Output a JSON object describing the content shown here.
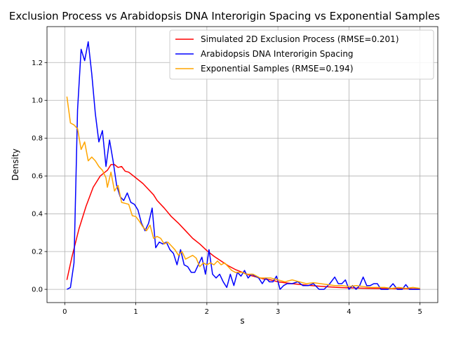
{
  "chart_data": {
    "type": "line",
    "title": "Exclusion Process vs Arabidopsis DNA Interorigin Spacing vs Exponential Samples",
    "xlabel": "s",
    "ylabel": "Density",
    "xlim": [
      -0.25,
      5.25
    ],
    "ylim": [
      -0.07,
      1.39
    ],
    "xticks": [
      0,
      1,
      2,
      3,
      4,
      5
    ],
    "yticks": [
      0.0,
      0.2,
      0.4,
      0.6,
      0.8,
      1.0,
      1.2
    ],
    "grid": true,
    "legend_position": "top-right",
    "series": [
      {
        "name": "Simulated 2D Exclusion Process (RMSE=0.201)",
        "color": "#ff0000",
        "points": [
          [
            0.03,
            0.05
          ],
          [
            0.1,
            0.17
          ],
          [
            0.2,
            0.32
          ],
          [
            0.3,
            0.44
          ],
          [
            0.4,
            0.54
          ],
          [
            0.5,
            0.6
          ],
          [
            0.6,
            0.63
          ],
          [
            0.65,
            0.66
          ],
          [
            0.7,
            0.66
          ],
          [
            0.75,
            0.645
          ],
          [
            0.8,
            0.65
          ],
          [
            0.85,
            0.625
          ],
          [
            0.9,
            0.62
          ],
          [
            1.0,
            0.59
          ],
          [
            1.1,
            0.56
          ],
          [
            1.2,
            0.52
          ],
          [
            1.25,
            0.5
          ],
          [
            1.3,
            0.47
          ],
          [
            1.4,
            0.43
          ],
          [
            1.5,
            0.385
          ],
          [
            1.6,
            0.35
          ],
          [
            1.7,
            0.31
          ],
          [
            1.8,
            0.27
          ],
          [
            1.9,
            0.24
          ],
          [
            2.0,
            0.205
          ],
          [
            2.1,
            0.175
          ],
          [
            2.2,
            0.15
          ],
          [
            2.3,
            0.125
          ],
          [
            2.4,
            0.105
          ],
          [
            2.5,
            0.09
          ],
          [
            2.6,
            0.075
          ],
          [
            2.7,
            0.065
          ],
          [
            2.8,
            0.055
          ],
          [
            2.9,
            0.05
          ],
          [
            3.0,
            0.04
          ],
          [
            3.2,
            0.03
          ],
          [
            3.4,
            0.022
          ],
          [
            3.6,
            0.016
          ],
          [
            3.8,
            0.011
          ],
          [
            4.0,
            0.008
          ],
          [
            4.2,
            0.006
          ],
          [
            4.5,
            0.004
          ],
          [
            4.8,
            0.003
          ],
          [
            5.0,
            0.002
          ]
        ]
      },
      {
        "name": "Arabidopsis DNA Interorigin Spacing",
        "color": "#0000ff",
        "points": [
          [
            0.03,
            0.0
          ],
          [
            0.08,
            0.01
          ],
          [
            0.13,
            0.14
          ],
          [
            0.18,
            0.95
          ],
          [
            0.23,
            1.27
          ],
          [
            0.28,
            1.21
          ],
          [
            0.33,
            1.31
          ],
          [
            0.38,
            1.14
          ],
          [
            0.43,
            0.93
          ],
          [
            0.48,
            0.78
          ],
          [
            0.53,
            0.84
          ],
          [
            0.58,
            0.65
          ],
          [
            0.63,
            0.79
          ],
          [
            0.68,
            0.68
          ],
          [
            0.73,
            0.55
          ],
          [
            0.78,
            0.49
          ],
          [
            0.83,
            0.47
          ],
          [
            0.88,
            0.51
          ],
          [
            0.93,
            0.46
          ],
          [
            0.98,
            0.45
          ],
          [
            1.03,
            0.42
          ],
          [
            1.08,
            0.35
          ],
          [
            1.13,
            0.31
          ],
          [
            1.18,
            0.35
          ],
          [
            1.23,
            0.43
          ],
          [
            1.28,
            0.22
          ],
          [
            1.33,
            0.25
          ],
          [
            1.38,
            0.24
          ],
          [
            1.43,
            0.25
          ],
          [
            1.48,
            0.21
          ],
          [
            1.53,
            0.19
          ],
          [
            1.58,
            0.13
          ],
          [
            1.63,
            0.21
          ],
          [
            1.68,
            0.13
          ],
          [
            1.73,
            0.12
          ],
          [
            1.78,
            0.09
          ],
          [
            1.83,
            0.09
          ],
          [
            1.88,
            0.13
          ],
          [
            1.93,
            0.17
          ],
          [
            1.98,
            0.08
          ],
          [
            2.03,
            0.21
          ],
          [
            2.08,
            0.08
          ],
          [
            2.13,
            0.06
          ],
          [
            2.18,
            0.08
          ],
          [
            2.23,
            0.04
          ],
          [
            2.28,
            0.01
          ],
          [
            2.33,
            0.08
          ],
          [
            2.38,
            0.02
          ],
          [
            2.43,
            0.09
          ],
          [
            2.48,
            0.07
          ],
          [
            2.53,
            0.1
          ],
          [
            2.58,
            0.06
          ],
          [
            2.63,
            0.08
          ],
          [
            2.68,
            0.07
          ],
          [
            2.73,
            0.06
          ],
          [
            2.78,
            0.03
          ],
          [
            2.83,
            0.06
          ],
          [
            2.88,
            0.04
          ],
          [
            2.93,
            0.04
          ],
          [
            2.98,
            0.07
          ],
          [
            3.03,
            0.0
          ],
          [
            3.08,
            0.02
          ],
          [
            3.13,
            0.03
          ],
          [
            3.2,
            0.03
          ],
          [
            3.28,
            0.04
          ],
          [
            3.35,
            0.02
          ],
          [
            3.43,
            0.02
          ],
          [
            3.5,
            0.03
          ],
          [
            3.58,
            0.0
          ],
          [
            3.65,
            0.0
          ],
          [
            3.73,
            0.03
          ],
          [
            3.8,
            0.065
          ],
          [
            3.85,
            0.03
          ],
          [
            3.9,
            0.03
          ],
          [
            3.95,
            0.05
          ],
          [
            4.0,
            0.0
          ],
          [
            4.05,
            0.02
          ],
          [
            4.1,
            0.0
          ],
          [
            4.15,
            0.02
          ],
          [
            4.2,
            0.065
          ],
          [
            4.25,
            0.02
          ],
          [
            4.3,
            0.02
          ],
          [
            4.35,
            0.03
          ],
          [
            4.4,
            0.03
          ],
          [
            4.45,
            0.0
          ],
          [
            4.55,
            0.0
          ],
          [
            4.62,
            0.03
          ],
          [
            4.68,
            0.0
          ],
          [
            4.75,
            0.0
          ],
          [
            4.8,
            0.025
          ],
          [
            4.85,
            0.0
          ],
          [
            4.95,
            0.0
          ],
          [
            5.0,
            0.0
          ]
        ]
      },
      {
        "name": "Exponential Samples (RMSE=0.194)",
        "color": "#ffa500",
        "points": [
          [
            0.03,
            1.02
          ],
          [
            0.08,
            0.88
          ],
          [
            0.13,
            0.87
          ],
          [
            0.18,
            0.85
          ],
          [
            0.23,
            0.74
          ],
          [
            0.28,
            0.78
          ],
          [
            0.33,
            0.68
          ],
          [
            0.38,
            0.7
          ],
          [
            0.43,
            0.68
          ],
          [
            0.48,
            0.65
          ],
          [
            0.53,
            0.63
          ],
          [
            0.58,
            0.59
          ],
          [
            0.6,
            0.54
          ],
          [
            0.65,
            0.62
          ],
          [
            0.7,
            0.52
          ],
          [
            0.75,
            0.55
          ],
          [
            0.8,
            0.46
          ],
          [
            0.85,
            0.455
          ],
          [
            0.9,
            0.45
          ],
          [
            0.95,
            0.39
          ],
          [
            1.0,
            0.385
          ],
          [
            1.05,
            0.36
          ],
          [
            1.1,
            0.33
          ],
          [
            1.15,
            0.31
          ],
          [
            1.2,
            0.34
          ],
          [
            1.25,
            0.27
          ],
          [
            1.3,
            0.28
          ],
          [
            1.35,
            0.27
          ],
          [
            1.4,
            0.24
          ],
          [
            1.45,
            0.25
          ],
          [
            1.5,
            0.23
          ],
          [
            1.55,
            0.21
          ],
          [
            1.6,
            0.18
          ],
          [
            1.65,
            0.2
          ],
          [
            1.7,
            0.16
          ],
          [
            1.75,
            0.17
          ],
          [
            1.8,
            0.18
          ],
          [
            1.85,
            0.165
          ],
          [
            1.9,
            0.12
          ],
          [
            1.95,
            0.14
          ],
          [
            2.0,
            0.13
          ],
          [
            2.05,
            0.14
          ],
          [
            2.1,
            0.13
          ],
          [
            2.15,
            0.15
          ],
          [
            2.2,
            0.13
          ],
          [
            2.25,
            0.14
          ],
          [
            2.3,
            0.12
          ],
          [
            2.35,
            0.1
          ],
          [
            2.4,
            0.09
          ],
          [
            2.45,
            0.09
          ],
          [
            2.5,
            0.09
          ],
          [
            2.55,
            0.08
          ],
          [
            2.6,
            0.08
          ],
          [
            2.65,
            0.08
          ],
          [
            2.7,
            0.07
          ],
          [
            2.75,
            0.06
          ],
          [
            2.8,
            0.06
          ],
          [
            2.9,
            0.06
          ],
          [
            3.0,
            0.05
          ],
          [
            3.1,
            0.04
          ],
          [
            3.2,
            0.05
          ],
          [
            3.3,
            0.04
          ],
          [
            3.4,
            0.03
          ],
          [
            3.5,
            0.035
          ],
          [
            3.6,
            0.03
          ],
          [
            3.7,
            0.025
          ],
          [
            3.8,
            0.02
          ],
          [
            3.9,
            0.02
          ],
          [
            4.0,
            0.015
          ],
          [
            4.1,
            0.02
          ],
          [
            4.2,
            0.015
          ],
          [
            4.3,
            0.01
          ],
          [
            4.4,
            0.01
          ],
          [
            4.5,
            0.01
          ],
          [
            4.6,
            0.005
          ],
          [
            4.7,
            0.01
          ],
          [
            4.8,
            0.005
          ],
          [
            4.9,
            0.01
          ],
          [
            5.0,
            0.005
          ]
        ]
      }
    ]
  }
}
